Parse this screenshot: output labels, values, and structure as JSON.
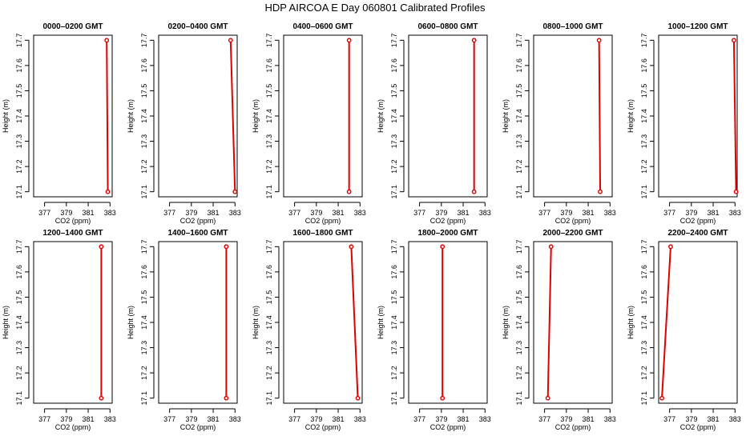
{
  "figure": {
    "title": "HDP AIRCOA E  Day 060801  Calibrated Profiles"
  },
  "colors": {
    "series": "#e00000",
    "axis": "#000000",
    "background": "#ffffff"
  },
  "chart_data": [
    {
      "type": "line",
      "title": "0000–0200 GMT",
      "xlabel": "CO2 (ppm)",
      "ylabel": "Height (m)",
      "xlim": [
        376,
        383.2
      ],
      "ylim": [
        17.08,
        17.72
      ],
      "x_ticks": [
        377,
        379,
        381,
        383
      ],
      "y_ticks": [
        17.1,
        17.2,
        17.3,
        17.4,
        17.5,
        17.6,
        17.7
      ],
      "grid": false,
      "series": [
        {
          "points": [
            {
              "x": 382.7,
              "y": 17.7
            },
            {
              "x": 382.8,
              "y": 17.1
            }
          ]
        }
      ]
    },
    {
      "type": "line",
      "title": "0200–0400 GMT",
      "xlabel": "CO2 (ppm)",
      "ylabel": "Height (m)",
      "xlim": [
        376,
        383.2
      ],
      "ylim": [
        17.08,
        17.72
      ],
      "x_ticks": [
        377,
        379,
        381,
        383
      ],
      "y_ticks": [
        17.1,
        17.2,
        17.3,
        17.4,
        17.5,
        17.6,
        17.7
      ],
      "grid": false,
      "series": [
        {
          "points": [
            {
              "x": 382.6,
              "y": 17.7
            },
            {
              "x": 383.0,
              "y": 17.1
            }
          ]
        }
      ]
    },
    {
      "type": "line",
      "title": "0400–0600 GMT",
      "xlabel": "CO2 (ppm)",
      "ylabel": "Height (m)",
      "xlim": [
        376,
        383.2
      ],
      "ylim": [
        17.08,
        17.72
      ],
      "x_ticks": [
        377,
        379,
        381,
        383
      ],
      "y_ticks": [
        17.1,
        17.2,
        17.3,
        17.4,
        17.5,
        17.6,
        17.7
      ],
      "grid": false,
      "series": [
        {
          "points": [
            {
              "x": 382.0,
              "y": 17.7
            },
            {
              "x": 382.0,
              "y": 17.1
            }
          ]
        }
      ]
    },
    {
      "type": "line",
      "title": "0600–0800 GMT",
      "xlabel": "CO2 (ppm)",
      "ylabel": "Height (m)",
      "xlim": [
        376,
        383.2
      ],
      "ylim": [
        17.08,
        17.72
      ],
      "x_ticks": [
        377,
        379,
        381,
        383
      ],
      "y_ticks": [
        17.1,
        17.2,
        17.3,
        17.4,
        17.5,
        17.6,
        17.7
      ],
      "grid": false,
      "series": [
        {
          "points": [
            {
              "x": 382.0,
              "y": 17.7
            },
            {
              "x": 382.0,
              "y": 17.1
            }
          ]
        }
      ]
    },
    {
      "type": "line",
      "title": "0800–1000 GMT",
      "xlabel": "CO2 (ppm)",
      "ylabel": "Height (m)",
      "xlim": [
        376,
        383.2
      ],
      "ylim": [
        17.08,
        17.72
      ],
      "x_ticks": [
        377,
        379,
        381,
        383
      ],
      "y_ticks": [
        17.1,
        17.2,
        17.3,
        17.4,
        17.5,
        17.6,
        17.7
      ],
      "grid": false,
      "series": [
        {
          "points": [
            {
              "x": 382.0,
              "y": 17.7
            },
            {
              "x": 382.1,
              "y": 17.1
            }
          ]
        }
      ]
    },
    {
      "type": "line",
      "title": "1000–1200 GMT",
      "xlabel": "CO2 (ppm)",
      "ylabel": "Height (m)",
      "xlim": [
        376,
        383.2
      ],
      "ylim": [
        17.08,
        17.72
      ],
      "x_ticks": [
        377,
        379,
        381,
        383
      ],
      "y_ticks": [
        17.1,
        17.2,
        17.3,
        17.4,
        17.5,
        17.6,
        17.7
      ],
      "grid": false,
      "series": [
        {
          "points": [
            {
              "x": 382.9,
              "y": 17.7
            },
            {
              "x": 383.1,
              "y": 17.1
            }
          ]
        }
      ]
    },
    {
      "type": "line",
      "title": "1200–1400 GMT",
      "xlabel": "CO2 (ppm)",
      "ylabel": "Height (m)",
      "xlim": [
        376,
        383.2
      ],
      "ylim": [
        17.08,
        17.72
      ],
      "x_ticks": [
        377,
        379,
        381,
        383
      ],
      "y_ticks": [
        17.1,
        17.2,
        17.3,
        17.4,
        17.5,
        17.6,
        17.7
      ],
      "grid": false,
      "series": [
        {
          "points": [
            {
              "x": 382.2,
              "y": 17.7
            },
            {
              "x": 382.2,
              "y": 17.1
            }
          ]
        }
      ]
    },
    {
      "type": "line",
      "title": "1400–1600 GMT",
      "xlabel": "CO2 (ppm)",
      "ylabel": "Height (m)",
      "xlim": [
        376,
        383.2
      ],
      "ylim": [
        17.08,
        17.72
      ],
      "x_ticks": [
        377,
        379,
        381,
        383
      ],
      "y_ticks": [
        17.1,
        17.2,
        17.3,
        17.4,
        17.5,
        17.6,
        17.7
      ],
      "grid": false,
      "series": [
        {
          "points": [
            {
              "x": 382.2,
              "y": 17.7
            },
            {
              "x": 382.2,
              "y": 17.1
            }
          ]
        }
      ]
    },
    {
      "type": "line",
      "title": "1600–1800 GMT",
      "xlabel": "CO2 (ppm)",
      "ylabel": "Height (m)",
      "xlim": [
        376,
        383.2
      ],
      "ylim": [
        17.08,
        17.72
      ],
      "x_ticks": [
        377,
        379,
        381,
        383
      ],
      "y_ticks": [
        17.1,
        17.2,
        17.3,
        17.4,
        17.5,
        17.6,
        17.7
      ],
      "grid": false,
      "series": [
        {
          "points": [
            {
              "x": 382.2,
              "y": 17.7
            },
            {
              "x": 382.8,
              "y": 17.1
            }
          ]
        }
      ]
    },
    {
      "type": "line",
      "title": "1800–2000 GMT",
      "xlabel": "CO2 (ppm)",
      "ylabel": "Height (m)",
      "xlim": [
        376,
        383.2
      ],
      "ylim": [
        17.08,
        17.72
      ],
      "x_ticks": [
        377,
        379,
        381,
        383
      ],
      "y_ticks": [
        17.1,
        17.2,
        17.3,
        17.4,
        17.5,
        17.6,
        17.7
      ],
      "grid": false,
      "series": [
        {
          "points": [
            {
              "x": 379.1,
              "y": 17.7
            },
            {
              "x": 379.1,
              "y": 17.1
            }
          ]
        }
      ]
    },
    {
      "type": "line",
      "title": "2000–2200 GMT",
      "xlabel": "CO2 (ppm)",
      "ylabel": "Height (m)",
      "xlim": [
        376,
        383.2
      ],
      "ylim": [
        17.08,
        17.72
      ],
      "x_ticks": [
        377,
        379,
        381,
        383
      ],
      "y_ticks": [
        17.1,
        17.2,
        17.3,
        17.4,
        17.5,
        17.6,
        17.7
      ],
      "grid": false,
      "series": [
        {
          "points": [
            {
              "x": 377.6,
              "y": 17.7
            },
            {
              "x": 377.3,
              "y": 17.1
            }
          ]
        }
      ]
    },
    {
      "type": "line",
      "title": "2200–2400 GMT",
      "xlabel": "CO2 (ppm)",
      "ylabel": "Height (m)",
      "xlim": [
        376,
        383.2
      ],
      "ylim": [
        17.08,
        17.72
      ],
      "x_ticks": [
        377,
        379,
        381,
        383
      ],
      "y_ticks": [
        17.1,
        17.2,
        17.3,
        17.4,
        17.5,
        17.6,
        17.7
      ],
      "grid": false,
      "series": [
        {
          "points": [
            {
              "x": 377.1,
              "y": 17.7
            },
            {
              "x": 376.3,
              "y": 17.1
            }
          ]
        }
      ]
    }
  ]
}
